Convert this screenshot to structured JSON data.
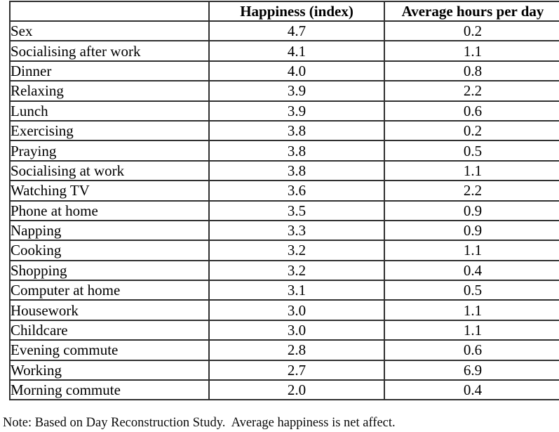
{
  "table": {
    "headers": {
      "activity": "",
      "happiness": "Happiness (index)",
      "hours": "Average hours per day"
    },
    "rows": [
      {
        "activity": "Sex",
        "happiness": "4.7",
        "hours": "0.2"
      },
      {
        "activity": "Socialising after work",
        "happiness": "4.1",
        "hours": "1.1"
      },
      {
        "activity": "Dinner",
        "happiness": "4.0",
        "hours": "0.8"
      },
      {
        "activity": "Relaxing",
        "happiness": "3.9",
        "hours": "2.2"
      },
      {
        "activity": "Lunch",
        "happiness": "3.9",
        "hours": "0.6"
      },
      {
        "activity": "Exercising",
        "happiness": "3.8",
        "hours": "0.2"
      },
      {
        "activity": "Praying",
        "happiness": "3.8",
        "hours": "0.5"
      },
      {
        "activity": "Socialising at work",
        "happiness": "3.8",
        "hours": "1.1"
      },
      {
        "activity": "Watching TV",
        "happiness": "3.6",
        "hours": "2.2"
      },
      {
        "activity": "Phone at home",
        "happiness": "3.5",
        "hours": "0.9"
      },
      {
        "activity": "Napping",
        "happiness": "3.3",
        "hours": "0.9"
      },
      {
        "activity": "Cooking",
        "happiness": "3.2",
        "hours": "1.1"
      },
      {
        "activity": "Shopping",
        "happiness": "3.2",
        "hours": "0.4"
      },
      {
        "activity": "Computer at home",
        "happiness": "3.1",
        "hours": "0.5"
      },
      {
        "activity": "Housework",
        "happiness": "3.0",
        "hours": "1.1"
      },
      {
        "activity": "Childcare",
        "happiness": "3.0",
        "hours": "1.1"
      },
      {
        "activity": "Evening commute",
        "happiness": "2.8",
        "hours": "0.6"
      },
      {
        "activity": "Working",
        "happiness": "2.7",
        "hours": "6.9"
      },
      {
        "activity": "Morning commute",
        "happiness": "2.0",
        "hours": "0.4"
      }
    ]
  },
  "note": "Note: Based on Day Reconstruction Study.  Average happiness is net affect.",
  "colors": {
    "background": "#ffffff",
    "text": "#000000",
    "border": "#303030"
  }
}
